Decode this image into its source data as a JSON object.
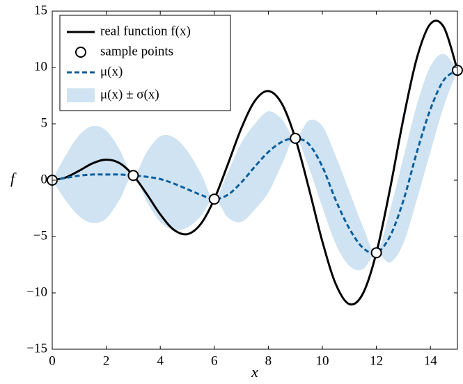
{
  "chart_data": {
    "type": "line",
    "x_label": "x",
    "y_label": "f",
    "x": [
      0,
      0.5,
      1,
      1.5,
      2,
      2.5,
      3,
      3.5,
      4,
      4.5,
      5,
      5.5,
      6,
      6.5,
      7,
      7.5,
      8,
      8.5,
      9,
      9.5,
      10,
      10.5,
      11,
      11.5,
      12,
      12.5,
      13,
      13.5,
      14,
      14.5,
      15
    ],
    "series": [
      {
        "name": "real function f(x)",
        "color": "#000000",
        "style": "solid",
        "values": [
          0,
          0.24,
          0.84,
          1.5,
          1.82,
          1.5,
          0.42,
          -1.23,
          -3.03,
          -4.4,
          -4.79,
          -3.88,
          -1.68,
          1.4,
          4.6,
          7.03,
          7.91,
          6.79,
          3.71,
          -0.71,
          -5.44,
          -9.24,
          -11,
          -10.07,
          -6.44,
          -0.83,
          5.46,
          10.85,
          13.87,
          13.56,
          9.75
        ]
      },
      {
        "name": "sample points",
        "color": "#000000",
        "style": "markers",
        "x": [
          0,
          3,
          6,
          9,
          12,
          15
        ],
        "values": [
          0,
          0.42,
          -1.68,
          3.71,
          -6.44,
          9.75
        ]
      },
      {
        "name": "μ(x)",
        "color": "#0b5e9c",
        "style": "dashed",
        "values": [
          0,
          0.2,
          0.4,
          0.5,
          0.5,
          0.5,
          0.42,
          0.3,
          0.1,
          -0.3,
          -0.8,
          -1.3,
          -1.68,
          -1.3,
          -0.2,
          1.2,
          2.5,
          3.4,
          3.71,
          3.2,
          1.2,
          -1.8,
          -4.3,
          -6,
          -6.44,
          -5,
          -1.8,
          2.5,
          6.3,
          8.9,
          9.75
        ]
      },
      {
        "name": "μ(x) ± σ(x)",
        "color": "#cfe3f2",
        "style": "band",
        "upper": [
          0,
          2.2,
          4,
          4.8,
          4.4,
          2.7,
          0.42,
          2.5,
          3.9,
          3.8,
          2.6,
          0.6,
          -1.68,
          0.7,
          3.3,
          5,
          6.1,
          5.4,
          3.71,
          5.3,
          4.8,
          2.1,
          -1,
          -4.1,
          -6.44,
          -2.7,
          2,
          6.7,
          10.1,
          11.2,
          9.75
        ],
        "lower": [
          0,
          -1.8,
          -3.2,
          -3.8,
          -3.4,
          -1.7,
          0.42,
          -1.9,
          -3.7,
          -4.4,
          -4.2,
          -3.2,
          -1.68,
          -3.3,
          -3.7,
          -2.6,
          -1.1,
          1.4,
          3.71,
          1.1,
          -2.4,
          -5.7,
          -7.6,
          -7.9,
          -6.44,
          -7.3,
          -5.6,
          -1.7,
          2.5,
          6.6,
          9.75
        ]
      }
    ],
    "xlim": [
      0,
      15
    ],
    "ylim": [
      -15,
      15
    ],
    "xticks": [
      0,
      2,
      4,
      6,
      8,
      10,
      12,
      14
    ],
    "yticks": [
      {
        "value": -15,
        "label": "−15"
      },
      {
        "value": -10,
        "label": "−10"
      },
      {
        "value": -5,
        "label": "−5"
      },
      0,
      5,
      10,
      15
    ],
    "legend": "upper left",
    "grid": false
  }
}
